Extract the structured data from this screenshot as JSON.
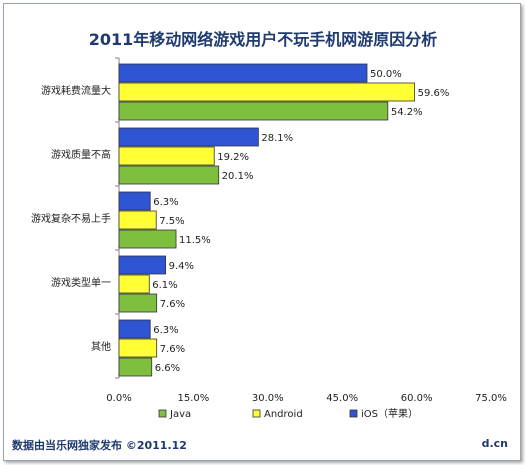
{
  "title": "2011年移动网络游戏用户不玩手机网游原因分析",
  "footer": {
    "source": "数据由当乐网独家发布 ©2011.12",
    "site": "d.cn"
  },
  "chart_data": {
    "type": "bar",
    "orientation": "horizontal",
    "title": "2011年移动网络游戏用户不玩手机网游原因分析",
    "categories": [
      "游戏耗费流量大",
      "游戏质量不高",
      "游戏复杂不易上手",
      "游戏类型单一",
      "其他"
    ],
    "series": [
      {
        "name": "iOS（苹果）",
        "color": "#2f55d4",
        "values": [
          50.0,
          28.1,
          6.3,
          9.4,
          6.3
        ]
      },
      {
        "name": "Android",
        "color": "#ffff33",
        "values": [
          59.6,
          19.2,
          7.5,
          6.1,
          7.6
        ]
      },
      {
        "name": "Java",
        "color": "#7fbf3f",
        "values": [
          54.2,
          20.1,
          11.5,
          7.6,
          6.6
        ]
      }
    ],
    "xlim": [
      0,
      75
    ],
    "xticks": [
      "0.0%",
      "15.0%",
      "30.0%",
      "45.0%",
      "60.0%",
      "75.0%"
    ],
    "value_format": "percent_1dp",
    "legend": {
      "placement": "bottom",
      "order": [
        "Java",
        "Android",
        "iOS（苹果）"
      ]
    },
    "grid": false
  }
}
